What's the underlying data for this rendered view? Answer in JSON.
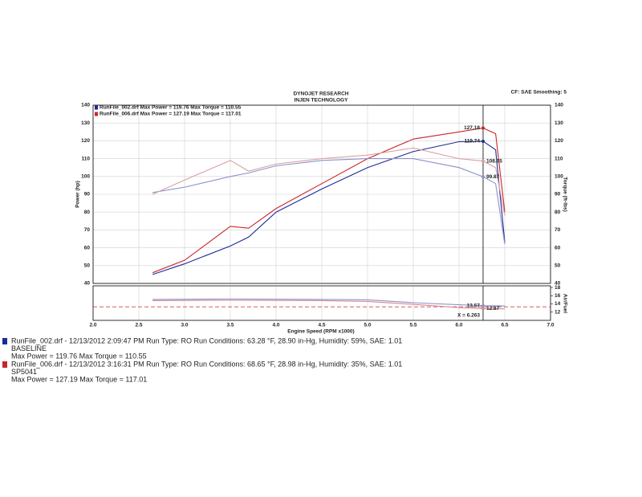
{
  "chart_data": [
    {
      "type": "line",
      "title": "DYNOJET RESEARCH",
      "subtitle": "INJEN TECHNOLOGY",
      "settings_label": "CF: SAE Smoothing: 5",
      "ylabel": "Power (hp)",
      "y2label": "Torque (ft-lbs)",
      "legend": [
        "RunFile_002.drf Max Power = 119.76   Max Torque = 110.55",
        "RunFile_006.drf Max Power = 127.19   Max Torque = 117.01"
      ],
      "legend_colors": [
        "#1c2a9a",
        "#c8262d"
      ],
      "x": [
        2.65,
        3.0,
        3.5,
        3.7,
        4.0,
        4.5,
        5.0,
        5.5,
        6.0,
        6.263,
        6.4,
        6.5
      ],
      "xlim": [
        2.0,
        7.0
      ],
      "xticks": [
        {
          "value": 2,
          "label": "2.0"
        },
        2.5,
        {
          "value": 3,
          "label": "3.0"
        },
        3.5,
        {
          "value": 4,
          "label": "4.0"
        },
        4.5,
        {
          "value": 5,
          "label": "5.0"
        },
        5.5,
        {
          "value": 6,
          "label": "6.0"
        },
        6.5,
        {
          "value": 7,
          "label": "7.0"
        }
      ],
      "ylim": [
        40,
        140
      ],
      "yticks": [
        40,
        50,
        60,
        70,
        80,
        90,
        100,
        110,
        120,
        130,
        140
      ],
      "y2lim": [
        40,
        140
      ],
      "y2ticks": [
        40,
        50,
        60,
        70,
        80,
        90,
        100,
        110,
        120,
        130,
        140
      ],
      "grid": true,
      "series": [
        {
          "name": "Power RunFile_002",
          "color": "#1c2a9a",
          "values": [
            45,
            51,
            61,
            66,
            80,
            93,
            105,
            114,
            119.5,
            119.74,
            115,
            63
          ]
        },
        {
          "name": "Power RunFile_006",
          "color": "#c8262d",
          "values": [
            46,
            53,
            72,
            71,
            82,
            96,
            110,
            121,
            125,
            127.18,
            124,
            80
          ]
        },
        {
          "name": "Torque RunFile_002",
          "color": "#8c92c8",
          "axis": "y2",
          "values": [
            91,
            94,
            100,
            102,
            106,
            109,
            110,
            110,
            105,
            99.87,
            96,
            62
          ]
        },
        {
          "name": "Torque RunFile_006",
          "color": "#d9a0a6",
          "axis": "y2",
          "values": [
            90,
            98,
            109,
            103,
            107,
            110,
            112,
            116,
            110,
            108.65,
            105,
            78
          ]
        }
      ],
      "cursor_x": 6.263,
      "markers": [
        {
          "series": 1,
          "value": 127.18
        },
        {
          "series": 0,
          "value": 119.74
        },
        {
          "series": 3,
          "value": 108.65
        },
        {
          "series": 2,
          "value": 99.87
        }
      ]
    },
    {
      "type": "line",
      "ylabel": "Air/Fuel",
      "xlabel": "Engine Speed (RPM x1000)",
      "x": [
        2.65,
        3.5,
        4.5,
        5.0,
        5.5,
        6.0,
        6.263,
        6.5
      ],
      "xlim": [
        2.0,
        7.0
      ],
      "xticks": [
        {
          "value": 2,
          "label": "2.0"
        },
        2.5,
        {
          "value": 3,
          "label": "3.0"
        },
        3.5,
        {
          "value": 4,
          "label": "4.0"
        },
        4.5,
        {
          "value": 5,
          "label": "5.0"
        },
        5.5,
        {
          "value": 6,
          "label": "6.0"
        },
        6.5,
        {
          "value": 7,
          "label": "7.0"
        }
      ],
      "ylim": [
        10,
        18.4
      ],
      "yticks": [
        12,
        14,
        16,
        18
      ],
      "grid": true,
      "reference": 13.3,
      "reference_color": "#c8262d",
      "series": [
        {
          "name": "AFR RunFile_002",
          "color": "#8c92c8",
          "values": [
            15.1,
            15.2,
            15.1,
            15.0,
            14.3,
            13.8,
            13.57,
            13.5
          ]
        },
        {
          "name": "AFR RunFile_006",
          "color": "#d08a92",
          "values": [
            14.8,
            14.9,
            14.8,
            14.6,
            13.9,
            13.1,
            12.87,
            12.8
          ]
        }
      ],
      "cursor_x": 6.263,
      "cursor_label": "X = 6.263",
      "markers": [
        {
          "series": 0,
          "value": 13.57
        },
        {
          "series": 1,
          "value": 12.87
        }
      ]
    }
  ],
  "run_info": [
    {
      "color": "#1c2a9a",
      "header": "RunFile_002.drf - 12/13/2012 2:09:47 PM  Run Type: RO  Run Conditions: 63.28 °F, 28.90 in-Hg,  Humidity:  59%, SAE: 1.01",
      "name": "BASELINE",
      "max": "Max Power = 119.76  Max Torque = 110.55"
    },
    {
      "color": "#c8262d",
      "header": "RunFile_006.drf - 12/13/2012 3:16:31 PM  Run Type: RO  Run Conditions: 68.65 °F, 28.98 in-Hg,  Humidity:  35%, SAE: 1.01",
      "name": "SP5041",
      "max": "Max Power = 127.19  Max Torque = 117.01"
    }
  ]
}
